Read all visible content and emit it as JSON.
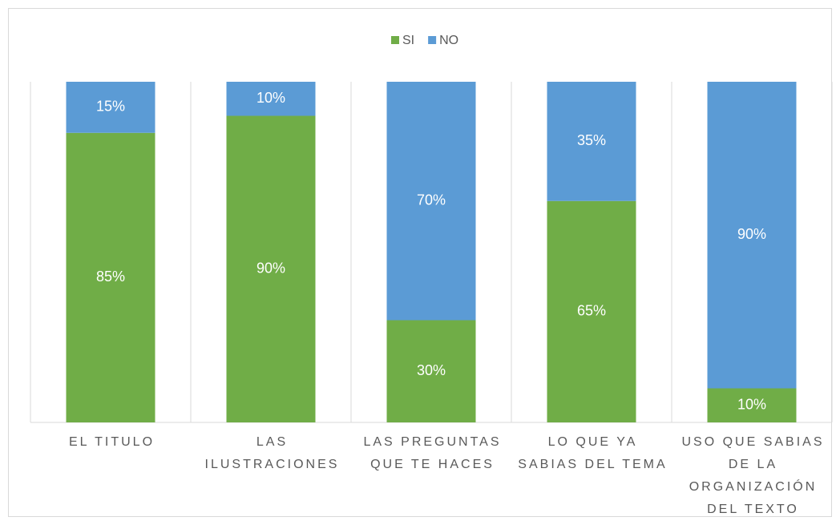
{
  "chart_data": {
    "type": "stacked_bar",
    "categories": [
      "EL TITULO",
      "LAS ILUSTRACIONES",
      "LAS PREGUNTAS QUE TE HACES",
      "LO QUE YA SABIAS DEL TEMA",
      "USO QUE SABIAS DE LA ORGANIZACIÓN DEL TEXTO"
    ],
    "series": [
      {
        "name": "SI",
        "color": "#70ad47",
        "values": [
          85,
          90,
          30,
          65,
          10
        ],
        "value_labels": [
          "85%",
          "90%",
          "30%",
          "65%",
          "10%"
        ]
      },
      {
        "name": "NO",
        "color": "#5b9bd5",
        "values": [
          15,
          10,
          70,
          35,
          90
        ],
        "value_labels": [
          "15%",
          "10%",
          "70%",
          "35%",
          "90%"
        ]
      }
    ],
    "ylim": [
      0,
      100
    ],
    "legend": "top",
    "grid": true
  }
}
